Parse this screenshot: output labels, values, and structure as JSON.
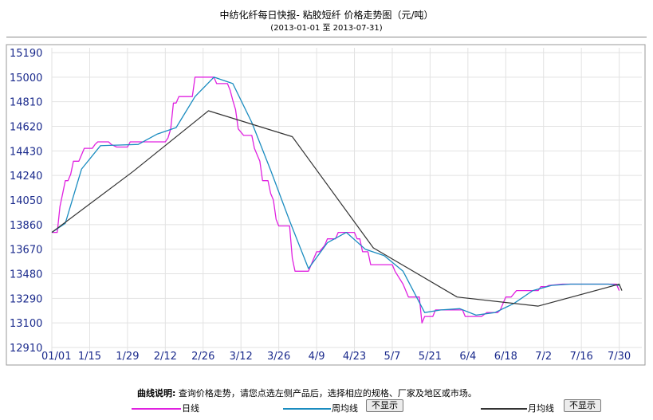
{
  "header": {
    "title": "中纺化纤每日快报- 粘胶短纤 价格走势图（元/吨）",
    "subtitle": "(2013-01-01 至 2013-07-31)"
  },
  "footer": {
    "note_label": "曲线说明:",
    "note_text": "查询价格走势，请您点选左侧产品后，选择相应的规格、厂家及地区或市场。"
  },
  "legend": {
    "daily_label": "日线",
    "weekly_label": "周均线",
    "monthly_label": "月均线",
    "hide_button": "不显示"
  },
  "colors": {
    "daily": "#e020e0",
    "weekly": "#1a8cc0",
    "monthly": "#333333",
    "grid": "#e2e2e2",
    "axis_text": "#1a2a8c"
  },
  "chart_data": {
    "type": "line",
    "x_unit": "day-of-year 2013",
    "xlim": [
      1,
      212
    ],
    "ylim": [
      12910,
      15190
    ],
    "x_ticks": [
      {
        "label": "01/01",
        "day": 1
      },
      {
        "label": "1/15",
        "day": 15
      },
      {
        "label": "1/29",
        "day": 29
      },
      {
        "label": "2/12",
        "day": 43
      },
      {
        "label": "2/26",
        "day": 57
      },
      {
        "label": "3/12",
        "day": 71
      },
      {
        "label": "3/26",
        "day": 85
      },
      {
        "label": "4/9",
        "day": 99
      },
      {
        "label": "4/23",
        "day": 113
      },
      {
        "label": "5/7",
        "day": 127
      },
      {
        "label": "5/21",
        "day": 141
      },
      {
        "label": "6/4",
        "day": 155
      },
      {
        "label": "6/18",
        "day": 169
      },
      {
        "label": "7/2",
        "day": 183
      },
      {
        "label": "7/16",
        "day": 197
      },
      {
        "label": "7/30",
        "day": 211
      }
    ],
    "y_ticks": [
      12910,
      13100,
      13290,
      13480,
      13670,
      13860,
      14050,
      14240,
      14430,
      14620,
      14810,
      15000,
      15190
    ],
    "series": [
      {
        "key": "daily",
        "points": [
          [
            1,
            13800
          ],
          [
            3,
            13800
          ],
          [
            4,
            14000
          ],
          [
            5,
            14100
          ],
          [
            6,
            14200
          ],
          [
            7,
            14200
          ],
          [
            8,
            14250
          ],
          [
            9,
            14350
          ],
          [
            10,
            14350
          ],
          [
            11,
            14350
          ],
          [
            12,
            14400
          ],
          [
            13,
            14450
          ],
          [
            14,
            14450
          ],
          [
            16,
            14450
          ],
          [
            17,
            14480
          ],
          [
            18,
            14500
          ],
          [
            20,
            14500
          ],
          [
            22,
            14500
          ],
          [
            23,
            14480
          ],
          [
            25,
            14460
          ],
          [
            28,
            14460
          ],
          [
            29,
            14460
          ],
          [
            30,
            14500
          ],
          [
            31,
            14500
          ],
          [
            34,
            14500
          ],
          [
            36,
            14500
          ],
          [
            37,
            14500
          ],
          [
            40,
            14500
          ],
          [
            42,
            14500
          ],
          [
            43,
            14500
          ],
          [
            44,
            14530
          ],
          [
            45,
            14600
          ],
          [
            46,
            14800
          ],
          [
            47,
            14800
          ],
          [
            48,
            14850
          ],
          [
            50,
            14850
          ],
          [
            53,
            14850
          ],
          [
            54,
            15000
          ],
          [
            58,
            15000
          ],
          [
            61,
            15000
          ],
          [
            62,
            14950
          ],
          [
            64,
            14950
          ],
          [
            66,
            14950
          ],
          [
            67,
            14900
          ],
          [
            68,
            14820
          ],
          [
            69,
            14750
          ],
          [
            70,
            14600
          ],
          [
            72,
            14550
          ],
          [
            75,
            14550
          ],
          [
            76,
            14450
          ],
          [
            77,
            14400
          ],
          [
            78,
            14350
          ],
          [
            79,
            14200
          ],
          [
            81,
            14200
          ],
          [
            82,
            14100
          ],
          [
            83,
            14050
          ],
          [
            84,
            13900
          ],
          [
            85,
            13850
          ],
          [
            89,
            13850
          ],
          [
            90,
            13600
          ],
          [
            91,
            13500
          ],
          [
            96,
            13500
          ],
          [
            97,
            13550
          ],
          [
            98,
            13600
          ],
          [
            99,
            13650
          ],
          [
            100,
            13650
          ],
          [
            102,
            13700
          ],
          [
            103,
            13750
          ],
          [
            106,
            13750
          ],
          [
            107,
            13800
          ],
          [
            110,
            13800
          ],
          [
            113,
            13800
          ],
          [
            114,
            13750
          ],
          [
            115,
            13750
          ],
          [
            116,
            13650
          ],
          [
            118,
            13650
          ],
          [
            119,
            13550
          ],
          [
            121,
            13550
          ],
          [
            124,
            13550
          ],
          [
            127,
            13550
          ],
          [
            128,
            13500
          ],
          [
            131,
            13400
          ],
          [
            132,
            13350
          ],
          [
            133,
            13300
          ],
          [
            137,
            13300
          ],
          [
            138,
            13100
          ],
          [
            139,
            13150
          ],
          [
            141,
            13150
          ],
          [
            142,
            13150
          ],
          [
            143,
            13200
          ],
          [
            150,
            13200
          ],
          [
            153,
            13200
          ],
          [
            154,
            13150
          ],
          [
            158,
            13150
          ],
          [
            160,
            13150
          ],
          [
            162,
            13180
          ],
          [
            166,
            13180
          ],
          [
            167,
            13200
          ],
          [
            168,
            13250
          ],
          [
            169,
            13300
          ],
          [
            171,
            13300
          ],
          [
            173,
            13350
          ],
          [
            177,
            13350
          ],
          [
            181,
            13350
          ],
          [
            182,
            13380
          ],
          [
            184,
            13380
          ],
          [
            185,
            13390
          ],
          [
            190,
            13400
          ],
          [
            196,
            13400
          ],
          [
            205,
            13400
          ],
          [
            210,
            13400
          ],
          [
            211,
            13350
          ]
        ]
      },
      {
        "key": "weekly",
        "points": [
          [
            1,
            13800
          ],
          [
            6,
            13870
          ],
          [
            12,
            14290
          ],
          [
            19,
            14470
          ],
          [
            26,
            14475
          ],
          [
            33,
            14480
          ],
          [
            40,
            14560
          ],
          [
            47,
            14610
          ],
          [
            54,
            14850
          ],
          [
            61,
            15000
          ],
          [
            68,
            14950
          ],
          [
            75,
            14650
          ],
          [
            82,
            14280
          ],
          [
            89,
            13890
          ],
          [
            96,
            13520
          ],
          [
            103,
            13720
          ],
          [
            110,
            13800
          ],
          [
            117,
            13670
          ],
          [
            124,
            13620
          ],
          [
            131,
            13500
          ],
          [
            139,
            13180
          ],
          [
            145,
            13200
          ],
          [
            152,
            13210
          ],
          [
            158,
            13160
          ],
          [
            165,
            13180
          ],
          [
            172,
            13250
          ],
          [
            179,
            13350
          ],
          [
            186,
            13390
          ],
          [
            193,
            13400
          ],
          [
            200,
            13400
          ],
          [
            207,
            13400
          ],
          [
            211,
            13390
          ]
        ]
      },
      {
        "key": "monthly",
        "points": [
          [
            1,
            13800
          ],
          [
            31,
            14270
          ],
          [
            59,
            14740
          ],
          [
            90,
            14540
          ],
          [
            120,
            13680
          ],
          [
            151,
            13300
          ],
          [
            181,
            13230
          ],
          [
            211,
            13400
          ],
          [
            212,
            13350
          ]
        ]
      }
    ]
  }
}
